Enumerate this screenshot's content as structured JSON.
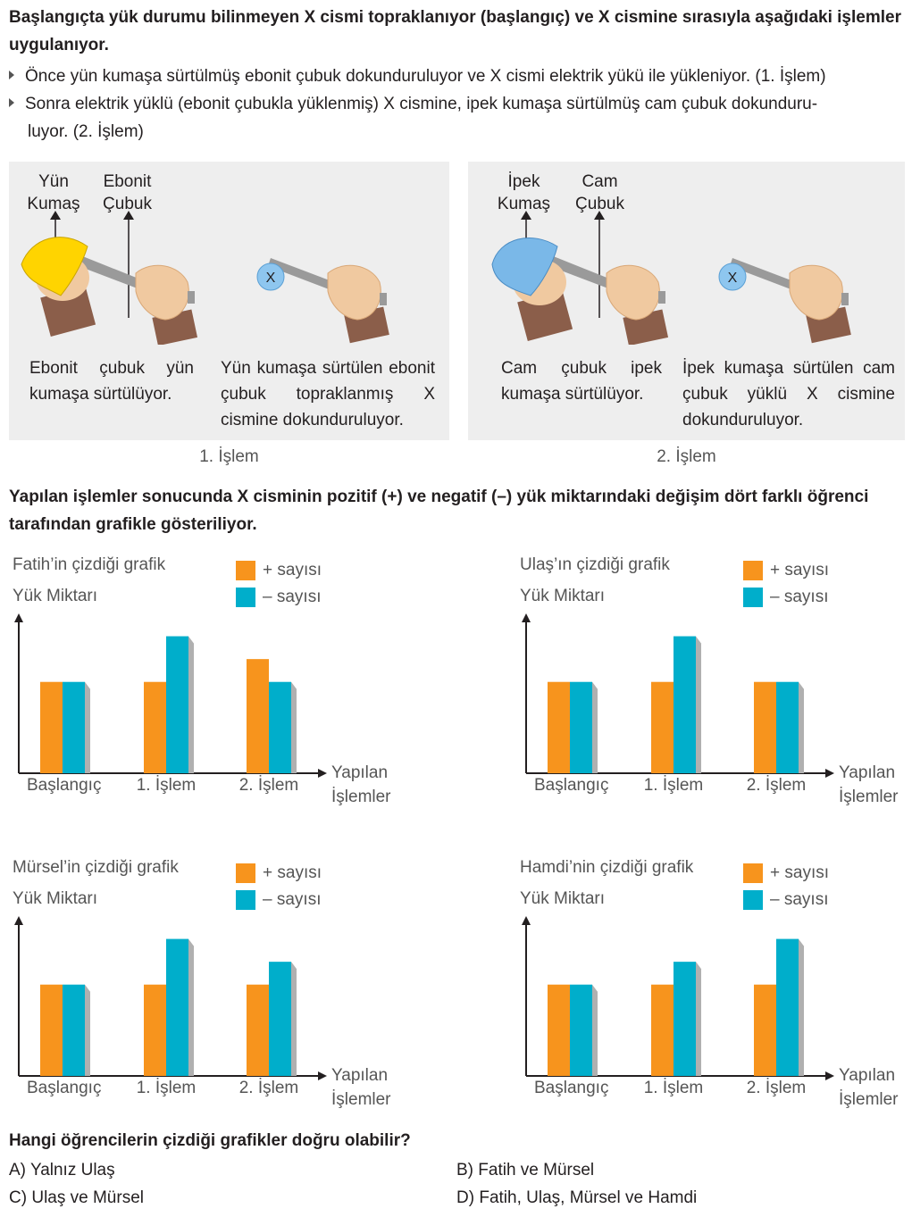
{
  "question": {
    "intro": "Başlangıçta yük durumu bilinmeyen X cismi topraklanıyor (başlangıç) ve X cismine sırasıyla aşağıdaki işlemler uygulanıyor.",
    "bullet1": "Önce yün kumaşa sürtülmüş ebonit çubuk dokunduruluyor ve X cismi elektrik yükü ile yükleniyor. (1. İşlem)",
    "bullet2_line1": "Sonra elektrik yüklü (ebonit çubukla yüklenmiş) X cismine, ipek kumaşa sürtülmüş cam çubuk dokunduru-",
    "bullet2_line2": "luyor. (2. İşlem)",
    "middle": "Yapılan işlemler sonucunda X cisminin pozitif (+) ve negatif (–) yük miktarındaki değişim dört farklı öğrenci tarafından grafikle gösteriliyor.",
    "final": "Hangi öğrencilerin çizdiği grafikler doğru olabilir?"
  },
  "panels": {
    "p1": {
      "cloth1": "Yün",
      "cloth2": "Kumaş",
      "rod1": "Ebonit",
      "rod2": "Çubuk",
      "ball": "X",
      "cap1": "Ebonit çubuk yün kumaşa sürtülüyor.",
      "cap2": "Yün kumaşa sürtülen ebonit çubuk topraklanmış X cismine dokunduruluyor.",
      "step": "1. İşlem"
    },
    "p2": {
      "cloth1": "İpek",
      "cloth2": "Kumaş",
      "rod1": "Cam",
      "rod2": "Çubuk",
      "ball": "X",
      "cap1": "Cam çubuk ipek kumaşa sürtülüyor.",
      "cap2": "İpek kumaşa sürtülen cam çubuk yüklü X cismine dokunduruluyor.",
      "step": "2. İşlem"
    }
  },
  "legend": {
    "plus": "+ sayısı",
    "minus": "– sayısı"
  },
  "axis": {
    "y": "Yük Miktarı",
    "x1": "Yapılan",
    "x2": "İşlemler"
  },
  "colors": {
    "plus": "#f7941d",
    "minus": "#00aecb",
    "panel": "#eeeeee"
  },
  "chart_data": [
    {
      "type": "bar",
      "title": "Fatih’in çizdiği grafik",
      "categories": [
        "Başlangıç",
        "1. İşlem",
        "2. İşlem"
      ],
      "series": [
        {
          "name": "+ sayısı",
          "values": [
            4,
            4,
            5
          ]
        },
        {
          "name": "– sayısı",
          "values": [
            4,
            6,
            4
          ]
        }
      ],
      "ylabel": "Yük Miktarı",
      "xlabel": "Yapılan İşlemler",
      "ylim": [
        0,
        7
      ]
    },
    {
      "type": "bar",
      "title": "Ulaş’ın çizdiği grafik",
      "categories": [
        "Başlangıç",
        "1. İşlem",
        "2. İşlem"
      ],
      "series": [
        {
          "name": "+ sayısı",
          "values": [
            4,
            4,
            4
          ]
        },
        {
          "name": "– sayısı",
          "values": [
            4,
            6,
            4
          ]
        }
      ],
      "ylabel": "Yük Miktarı",
      "xlabel": "Yapılan İşlemler",
      "ylim": [
        0,
        7
      ]
    },
    {
      "type": "bar",
      "title": "Mürsel’in çizdiği grafik",
      "categories": [
        "Başlangıç",
        "1. İşlem",
        "2. İşlem"
      ],
      "series": [
        {
          "name": "+ sayısı",
          "values": [
            4,
            4,
            4
          ]
        },
        {
          "name": "– sayısı",
          "values": [
            4,
            6,
            5
          ]
        }
      ],
      "ylabel": "Yük Miktarı",
      "xlabel": "Yapılan İşlemler",
      "ylim": [
        0,
        7
      ]
    },
    {
      "type": "bar",
      "title": "Hamdi’nin çizdiği grafik",
      "categories": [
        "Başlangıç",
        "1. İşlem",
        "2. İşlem"
      ],
      "series": [
        {
          "name": "+ sayısı",
          "values": [
            4,
            4,
            4
          ]
        },
        {
          "name": "– sayısı",
          "values": [
            4,
            5,
            6
          ]
        }
      ],
      "ylabel": "Yük Miktarı",
      "xlabel": "Yapılan İşlemler",
      "ylim": [
        0,
        7
      ]
    }
  ],
  "options": {
    "a_letter": "A)",
    "a": "Yalnız Ulaş",
    "b_letter": "B)",
    "b": "Fatih ve Mürsel",
    "c_letter": "C)",
    "c": "Ulaş ve Mürsel",
    "d_letter": "D)",
    "d": "Fatih, Ulaş, Mürsel ve Hamdi"
  }
}
